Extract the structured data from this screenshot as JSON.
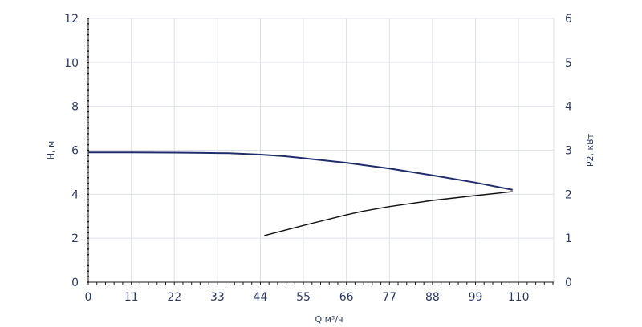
{
  "chart_data": {
    "type": "line",
    "xlabel": "Q м³/ч",
    "ylabel_left": "H, м",
    "ylabel_right": "P2, кВт",
    "x_ticks": [
      "0",
      "11",
      "22",
      "33",
      "44",
      "55",
      "66",
      "77",
      "88",
      "99",
      "110"
    ],
    "y_left_ticks": [
      "0",
      "2",
      "4",
      "6",
      "8",
      "10",
      "12"
    ],
    "y_right_ticks": [
      "0",
      "1",
      "2",
      "3",
      "4",
      "5",
      "6"
    ],
    "xlim": [
      0,
      119
    ],
    "ylim_left": [
      0,
      12
    ],
    "ylim_right": [
      0,
      6
    ],
    "grid": true,
    "colors": {
      "head": "#1f2d6b",
      "power": "#111111",
      "text": "#2b3a63"
    },
    "series": [
      {
        "axis": "left",
        "x": [
          0,
          11,
          22,
          33,
          36,
          44,
          50,
          55,
          66,
          77,
          88,
          99,
          108.5
        ],
        "values": [
          5.9,
          5.9,
          5.89,
          5.87,
          5.86,
          5.8,
          5.73,
          5.64,
          5.43,
          5.17,
          4.86,
          4.53,
          4.2
        ]
      },
      {
        "axis": "right",
        "x": [
          45,
          55,
          66,
          70,
          77,
          88,
          99,
          108.5
        ],
        "values": [
          1.06,
          1.29,
          1.53,
          1.61,
          1.72,
          1.86,
          1.97,
          2.06
        ]
      }
    ]
  }
}
